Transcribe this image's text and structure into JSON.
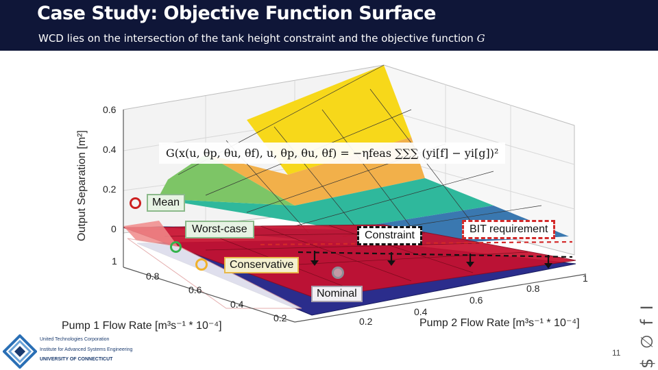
{
  "slide": {
    "title": "Case Study: Objective Function Surface",
    "subtitle_text": "WCD lies on the intersection of the tank height constraint and the objective function ",
    "subtitle_symbol": "G",
    "page_number": "11"
  },
  "plot": {
    "ylabel": "Output Separation [m²]",
    "x1label": "Pump 1 Flow Rate [m³s⁻¹ * 10⁻⁴]",
    "x2label": "Pump 2 Flow Rate [m³s⁻¹ * 10⁻⁴]",
    "yticks": [
      "0.6",
      "0.4",
      "0.2",
      "0"
    ],
    "x1ticks": [
      "1",
      "0.8",
      "0.6",
      "0.4",
      "0.2"
    ],
    "x2ticks": [
      "0.2",
      "0.4",
      "0.6",
      "0.8",
      "1"
    ],
    "formula": "G(x(u, θp, θu, θf), u, θp, θu, θf) = −ηfeas ∑∑∑ (yi[f] − yi[g])²",
    "colors": {
      "surface_top": "#f7d81a",
      "surface_mid": "#2fb89c",
      "surface_low": "#3a78b0",
      "constraint_plane": "#c8102e",
      "bottom_plane": "#2b2d8c"
    }
  },
  "annotations": {
    "mean": "Mean",
    "worst_case": "Worst-case",
    "constraint": "Constraint",
    "bit_requirement": "BIT requirement",
    "conservative": "Conservative",
    "nominal": "Nominal"
  },
  "logo": {
    "line1": "United Technologies Corporation",
    "line2": "Institute for Advanced Systems Engineering",
    "line3": "UNIVERSITY OF CONNECTICUT"
  },
  "side_symbols": "$ ∅ f I"
}
